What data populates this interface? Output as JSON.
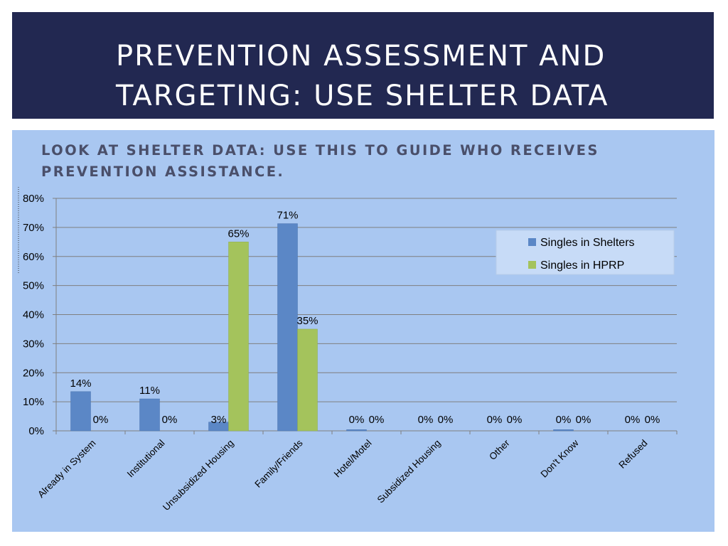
{
  "slide": {
    "title": "Prevention Assessment and Targeting: Use Shelter Data",
    "subtitle": "Look at shelter data: Use this to guide who receives prevention assistance."
  },
  "colors": {
    "title_background": "#222851",
    "panel_background": "#a9c7f1",
    "series_1": "#5b87c6",
    "series_2": "#a4c35c"
  },
  "chart_data": {
    "type": "bar",
    "categories": [
      "Already in System",
      "Institutional",
      "Unsubsidized Housing",
      "Family/Friends",
      "Hotel/Motel",
      "Subsidized Housing",
      "Other",
      "Don't Know",
      "Refused"
    ],
    "series": [
      {
        "name": "Singles in Shelters",
        "values": [
          13.5,
          11,
          3,
          71.3,
          0.4,
          0,
          0,
          0.4,
          0
        ],
        "labels": [
          "14%",
          "11%",
          "3%",
          "71%",
          "0%",
          "0%",
          "0%",
          "0%",
          "0%"
        ]
      },
      {
        "name": "Singles in HPRP",
        "values": [
          0,
          0,
          65,
          35,
          0,
          0,
          0,
          0,
          0
        ],
        "labels": [
          "0%",
          "0%",
          "65%",
          "35%",
          "0%",
          "0%",
          "0%",
          "0%",
          "0%"
        ]
      }
    ],
    "y_ticks": [
      "0%",
      "10%",
      "20%",
      "30%",
      "40%",
      "50%",
      "60%",
      "70%",
      "80%"
    ],
    "ylim": [
      0,
      80
    ],
    "grid": true,
    "legend_position": "right"
  }
}
